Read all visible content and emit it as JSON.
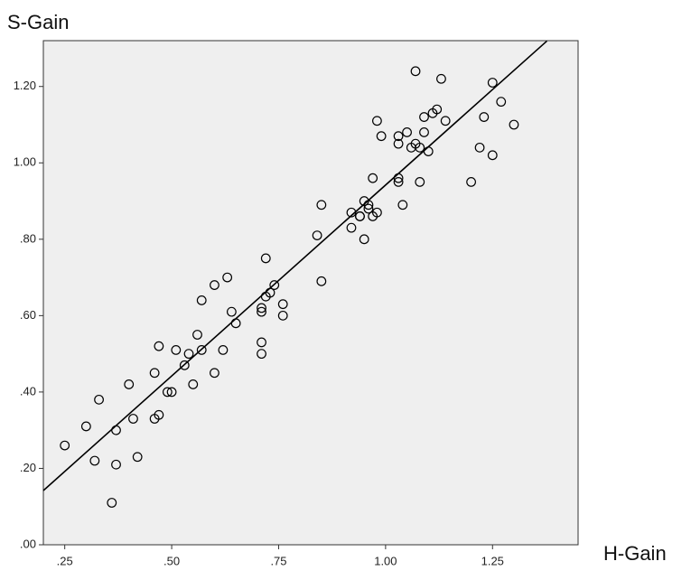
{
  "chart_data": {
    "type": "scatter",
    "y_label": "S-Gain",
    "x_label": "H-Gain",
    "xlim": [
      0.2,
      1.45
    ],
    "ylim": [
      0,
      1.32
    ],
    "xticks": [
      {
        "value": 0.25,
        "label": ".25"
      },
      {
        "value": 0.5,
        "label": ".50"
      },
      {
        "value": 0.75,
        "label": ".75"
      },
      {
        "value": 1.0,
        "label": "1.00"
      },
      {
        "value": 1.25,
        "label": "1.25"
      }
    ],
    "yticks": [
      {
        "value": 0,
        "label": ".00"
      },
      {
        "value": 0.2,
        "label": ".20"
      },
      {
        "value": 0.4,
        "label": ".40"
      },
      {
        "value": 0.6,
        "label": ".60"
      },
      {
        "value": 0.8,
        "label": ".80"
      },
      {
        "value": 1.0,
        "label": "1.00"
      },
      {
        "value": 1.2,
        "label": "1.20"
      }
    ],
    "color": "#000000",
    "plot_background": "#efefef",
    "x": [
      0.25,
      0.3,
      0.33,
      0.32,
      0.36,
      0.37,
      0.37,
      0.4,
      0.41,
      0.42,
      0.47,
      0.46,
      0.46,
      0.47,
      0.49,
      0.5,
      0.51,
      0.53,
      0.54,
      0.55,
      0.56,
      0.57,
      0.57,
      0.6,
      0.6,
      0.62,
      0.63,
      0.64,
      0.65,
      0.71,
      0.71,
      0.71,
      0.71,
      0.72,
      0.72,
      0.73,
      0.74,
      0.76,
      0.76,
      0.84,
      0.85,
      0.85,
      0.92,
      0.92,
      0.94,
      0.94,
      0.95,
      0.95,
      0.96,
      0.96,
      0.97,
      0.97,
      0.98,
      0.98,
      0.99,
      1.03,
      1.03,
      1.03,
      1.03,
      1.04,
      1.05,
      1.06,
      1.07,
      1.07,
      1.08,
      1.08,
      1.09,
      1.09,
      1.1,
      1.11,
      1.12,
      1.13,
      1.14,
      1.2,
      1.22,
      1.23,
      1.25,
      1.25,
      1.27,
      1.3
    ],
    "y": [
      0.26,
      0.31,
      0.38,
      0.22,
      0.11,
      0.3,
      0.21,
      0.42,
      0.33,
      0.23,
      0.52,
      0.45,
      0.33,
      0.34,
      0.4,
      0.4,
      0.51,
      0.47,
      0.5,
      0.42,
      0.55,
      0.64,
      0.51,
      0.68,
      0.45,
      0.51,
      0.7,
      0.61,
      0.58,
      0.61,
      0.62,
      0.53,
      0.5,
      0.75,
      0.65,
      0.66,
      0.68,
      0.63,
      0.6,
      0.81,
      0.89,
      0.69,
      0.87,
      0.83,
      0.86,
      0.86,
      0.9,
      0.8,
      0.88,
      0.89,
      0.86,
      0.96,
      0.87,
      1.11,
      1.07,
      0.96,
      0.95,
      1.07,
      1.05,
      0.89,
      1.08,
      1.04,
      1.05,
      1.24,
      0.95,
      1.04,
      1.08,
      1.12,
      1.03,
      1.13,
      1.14,
      1.22,
      1.11,
      0.95,
      1.04,
      1.12,
      1.02,
      1.21,
      1.16,
      1.1
    ],
    "fit_line": {
      "x": [
        0.2,
        1.377
      ],
      "y": [
        0.142,
        1.319
      ]
    }
  }
}
